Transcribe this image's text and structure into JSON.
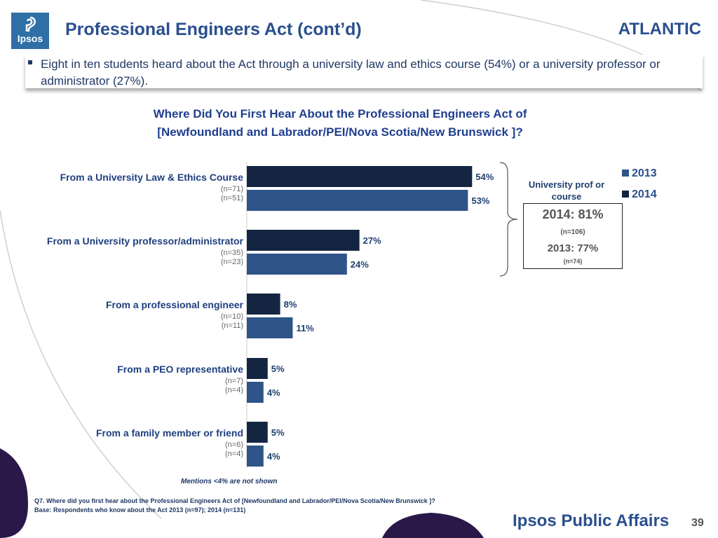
{
  "header": {
    "title": "Professional Engineers Act (cont’d)",
    "region": "ATLANTIC",
    "logo_text": "Ipsos"
  },
  "bullet": "Eight in ten students heard about the Act through a university law and ethics course (54%) or a university professor or administrator (27%).",
  "question_title": "Where Did You First Hear About the Professional Engineers Act of [Newfoundland and Labrador/PEI/Nova Scotia/New Brunswick ]?",
  "colors": {
    "y2014": "#142542",
    "y2013": "#2e5488",
    "title": "#2a4f8e"
  },
  "chart_data": {
    "type": "bar",
    "orientation": "horizontal",
    "title": "Where Did You First Hear About the Professional Engineers Act of [Newfoundland and Labrador/PEI/Nova Scotia/New Brunswick ]?",
    "categories": [
      "From a University Law & Ethics Course",
      "From a University professor/administrator",
      "From a professional engineer",
      "From a PEO representative",
      "From a family member or friend"
    ],
    "sample_sizes_2014": [
      "(n=71)",
      "(n=35)",
      "(n=10)",
      "(n=7)",
      "(n=6)"
    ],
    "sample_sizes_2013": [
      "(n=51)",
      "(n=23)",
      "(n=11)",
      "(n=4)",
      "(n=4)"
    ],
    "series": [
      {
        "name": "2014",
        "values": [
          54,
          27,
          8,
          5,
          5
        ],
        "labels": [
          "54%",
          "27%",
          "8%",
          "5%",
          "5%"
        ]
      },
      {
        "name": "2013",
        "values": [
          53,
          24,
          11,
          4,
          4
        ],
        "labels": [
          "53%",
          "24%",
          "11%",
          "4%",
          "4%"
        ]
      }
    ],
    "xlim": [
      0,
      60
    ],
    "legend": {
      "position": "top-right",
      "entries": [
        "2013",
        "2014"
      ]
    },
    "grid": false
  },
  "callout": {
    "heading": "University prof or course",
    "main": "2014: 81%",
    "main_n": "(n=106)",
    "sub": "2013: 77%",
    "sub_n": "(n=74)"
  },
  "footnotes": {
    "mentions": "Mentions <4% are not shown",
    "q7": "Q7. Where did you first hear about the Professional Engineers Act of [Newfoundland and Labrador/PEI/Nova Scotia/New Brunswick ]?",
    "base": "Base: Respondents who know about the Act 2013 (n=97); 2014 (n=131)"
  },
  "brand": "Ipsos Public Affairs",
  "page_number": "39"
}
